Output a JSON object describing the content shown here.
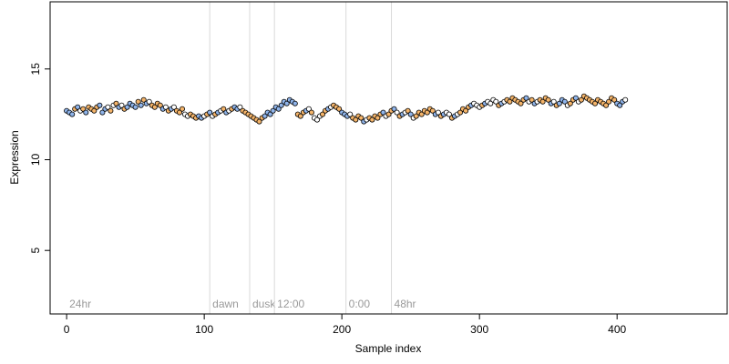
{
  "chart_data": {
    "type": "scatter",
    "title": "",
    "xlabel": "Sample index",
    "ylabel": "Expression",
    "xlim": [
      -12,
      480
    ],
    "ylim": [
      1.5,
      18.7
    ],
    "x_ticks": [
      0,
      100,
      200,
      300,
      400
    ],
    "y_ticks": [
      5,
      10,
      15
    ],
    "grid": false,
    "legend": "none",
    "colors": {
      "point_outline": "#000000",
      "point_fill_light": "#ffffff",
      "point_fill_blue": "#8fb4ea",
      "point_fill_orange": "#f4b46a",
      "region_line": "#d9d9d9",
      "region_label": "#9a9a9a"
    },
    "regions": [
      {
        "label": "24hr",
        "x": 0
      },
      {
        "label": "dawn",
        "x": 104
      },
      {
        "label": "dusk",
        "x": 133
      },
      {
        "label": "12:00",
        "x": 151
      },
      {
        "label": "0:00",
        "x": 203
      },
      {
        "label": "48hr",
        "x": 236
      }
    ],
    "series": [
      {
        "x_start": 0,
        "step": 2,
        "values": [
          12.7,
          12.6,
          12.5,
          12.8,
          12.9,
          12.7,
          12.8,
          12.6,
          12.9,
          12.8,
          12.7,
          12.9,
          13.0,
          12.6,
          12.8,
          12.9,
          12.7,
          13.0,
          13.1,
          12.9,
          13.0,
          12.8,
          12.9,
          13.1,
          13.0,
          12.9,
          13.2,
          13.0,
          13.3,
          13.1,
          13.2,
          13.0,
          12.9,
          13.1,
          13.0,
          12.8,
          12.9,
          12.7,
          12.8,
          12.9,
          12.7,
          12.6,
          12.8,
          12.5,
          12.4,
          12.5,
          12.4,
          12.3,
          12.4,
          12.3,
          12.4,
          12.5,
          12.6,
          12.4,
          12.5,
          12.6,
          12.7,
          12.8,
          12.6,
          12.7,
          12.8,
          12.9,
          12.8,
          12.9,
          12.7,
          12.6,
          12.5,
          12.4,
          12.3,
          12.2,
          12.1,
          12.3,
          12.4,
          12.6,
          12.5,
          12.7,
          12.9,
          12.8,
          13.0,
          13.2,
          13.1,
          13.3,
          13.2,
          13.1,
          12.5,
          12.4,
          12.6,
          12.7,
          12.8,
          12.6,
          12.3,
          12.2,
          12.4,
          12.5,
          12.7,
          12.8,
          12.9,
          13.0,
          12.9,
          12.8,
          12.6,
          12.5,
          12.4,
          12.5,
          12.3,
          12.2,
          12.4,
          12.3,
          12.1,
          12.2,
          12.3,
          12.2,
          12.4,
          12.3,
          12.5,
          12.6,
          12.4,
          12.5,
          12.7,
          12.8,
          12.6,
          12.4,
          12.5,
          12.6,
          12.7,
          12.5,
          12.3,
          12.4,
          12.6,
          12.5,
          12.7,
          12.6,
          12.8,
          12.7,
          12.5,
          12.6,
          12.4,
          12.5,
          12.6,
          12.5,
          12.3,
          12.4,
          12.5,
          12.6,
          12.8,
          12.7,
          12.9,
          13.0,
          13.1,
          13.0,
          12.9,
          13.0,
          13.1,
          13.2,
          13.1,
          13.3,
          13.2,
          13.0,
          13.1,
          13.2,
          13.3,
          13.2,
          13.4,
          13.3,
          13.2,
          13.1,
          13.3,
          13.4,
          13.2,
          13.3,
          13.1,
          13.2,
          13.3,
          13.2,
          13.4,
          13.3,
          13.1,
          13.2,
          13.0,
          13.1,
          13.3,
          13.2,
          13.0,
          13.1,
          13.3,
          13.4,
          13.2,
          13.3,
          13.5,
          13.4,
          13.3,
          13.2,
          13.1,
          13.3,
          13.2,
          13.1,
          13.0,
          13.2,
          13.4,
          13.3,
          13.1,
          13.0,
          13.2,
          13.3
        ]
      }
    ]
  }
}
